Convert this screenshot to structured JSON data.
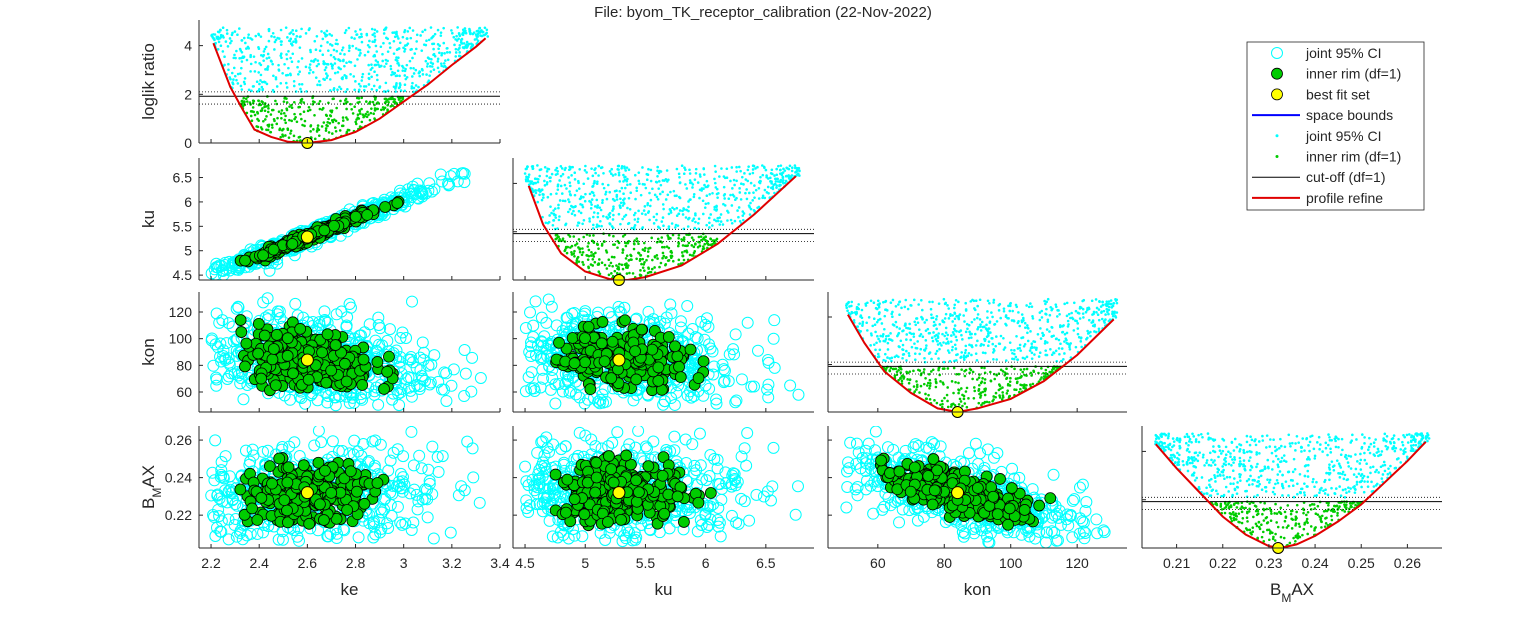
{
  "figure": {
    "title": "File: byom_TK_receptor_calibration (22-Nov-2022)"
  },
  "legend": {
    "entries": [
      {
        "label": "joint 95% CI",
        "marker": "open-circle",
        "color": "#00ffff"
      },
      {
        "label": "inner rim (df=1)",
        "marker": "filled-circle",
        "color": "#00cc00"
      },
      {
        "label": "best fit set",
        "marker": "filled-circle",
        "color": "#ffff00"
      },
      {
        "label": "space bounds",
        "marker": "line",
        "color": "#0000ff"
      },
      {
        "label": "joint 95% CI",
        "marker": "dot",
        "color": "#00ffff"
      },
      {
        "label": "inner rim (df=1)",
        "marker": "dot",
        "color": "#00cc00"
      },
      {
        "label": "cut-off (df=1)",
        "marker": "thin-line",
        "color": "#000000"
      },
      {
        "label": "profile refine",
        "marker": "line",
        "color": "#e00000"
      }
    ]
  },
  "colors": {
    "ci": "#00ffff",
    "inner": "#00cc00",
    "best": "#ffff00",
    "profile": "#e00000",
    "cutoff": "#000000"
  },
  "chart_data": {
    "type": "scatter",
    "parameters": [
      "ke",
      "ku",
      "kon",
      "BMAX"
    ],
    "parameter_labels": {
      "ke": "ke",
      "ku": "ku",
      "kon": "kon",
      "BMAX": "BMAX"
    },
    "best_fit": {
      "ke": 2.6,
      "ku": 5.28,
      "kon": 84,
      "BMAX": 0.232
    },
    "ci_range": {
      "ke": [
        2.2,
        3.35
      ],
      "ku": [
        4.5,
        6.8
      ],
      "kon": [
        50,
        132
      ],
      "BMAX": [
        0.205,
        0.265
      ]
    },
    "inner_range": {
      "ke": [
        2.32,
        3.0
      ],
      "ku": [
        4.75,
        6.1
      ],
      "kon": [
        60,
        116
      ],
      "BMAX": [
        0.214,
        0.252
      ]
    },
    "axis_limits": {
      "ke": [
        2.15,
        3.4
      ],
      "ku": [
        4.4,
        6.9
      ],
      "kon": [
        45,
        135
      ],
      "BMAX": [
        0.2025,
        0.2675
      ]
    },
    "ticks": {
      "ke": [
        "2.2",
        "2.4",
        "2.6",
        "2.8",
        "3",
        "3.2",
        "3.4"
      ],
      "ku": [
        "4.5",
        "5",
        "5.5",
        "6",
        "6.5"
      ],
      "kon": [
        "60",
        "80",
        "100",
        "120"
      ],
      "BMAX": [
        "0.21",
        "0.22",
        "0.23",
        "0.24",
        "0.25",
        "0.26"
      ]
    },
    "row_ticks": {
      "ku": [
        "4.5",
        "5",
        "5.5",
        "6",
        "6.5"
      ],
      "kon": [
        "60",
        "80",
        "100",
        "120"
      ],
      "BMAX": [
        "0.22",
        "0.24",
        "0.26"
      ]
    },
    "profile_ylabel": "loglik ratio",
    "profile_yticks": [
      "0",
      "2",
      "4"
    ],
    "profile_ylim": [
      0,
      4.8
    ],
    "cutoff": {
      "main": 1.92,
      "upper": 2.1,
      "lower": 1.6
    },
    "profiles": {
      "ke": {
        "x": [
          2.21,
          2.28,
          2.33,
          2.38,
          2.45,
          2.52,
          2.6,
          2.7,
          2.8,
          2.9,
          3.0,
          3.1,
          3.2,
          3.3,
          3.34
        ],
        "y": [
          4.1,
          2.3,
          1.4,
          0.55,
          0.25,
          0.05,
          0.0,
          0.12,
          0.45,
          1.0,
          1.7,
          2.4,
          3.2,
          3.95,
          4.3
        ]
      },
      "ku": {
        "x": [
          4.53,
          4.65,
          4.8,
          5.0,
          5.2,
          5.35,
          5.5,
          5.8,
          6.1,
          6.4,
          6.75
        ],
        "y": [
          3.9,
          2.3,
          1.1,
          0.35,
          0.04,
          0.0,
          0.12,
          0.6,
          1.5,
          2.7,
          4.3
        ]
      },
      "kon": {
        "x": [
          51,
          56,
          62,
          70,
          78,
          84,
          90,
          100,
          110,
          120,
          131
        ],
        "y": [
          4.1,
          2.9,
          1.7,
          0.8,
          0.15,
          0.0,
          0.15,
          0.55,
          1.3,
          2.4,
          3.9
        ]
      },
      "BMAX": {
        "x": [
          0.2055,
          0.21,
          0.215,
          0.22,
          0.225,
          0.23,
          0.2325,
          0.236,
          0.24,
          0.245,
          0.25,
          0.255,
          0.26,
          0.264
        ],
        "y": [
          4.3,
          3.3,
          2.3,
          1.3,
          0.55,
          0.08,
          0.0,
          0.15,
          0.5,
          1.1,
          1.8,
          2.7,
          3.6,
          4.4
        ]
      }
    },
    "sample_counts": {
      "ci_profile": 700,
      "inner_profile": 320,
      "ci_pair": 520,
      "inner_pair": 260
    }
  }
}
